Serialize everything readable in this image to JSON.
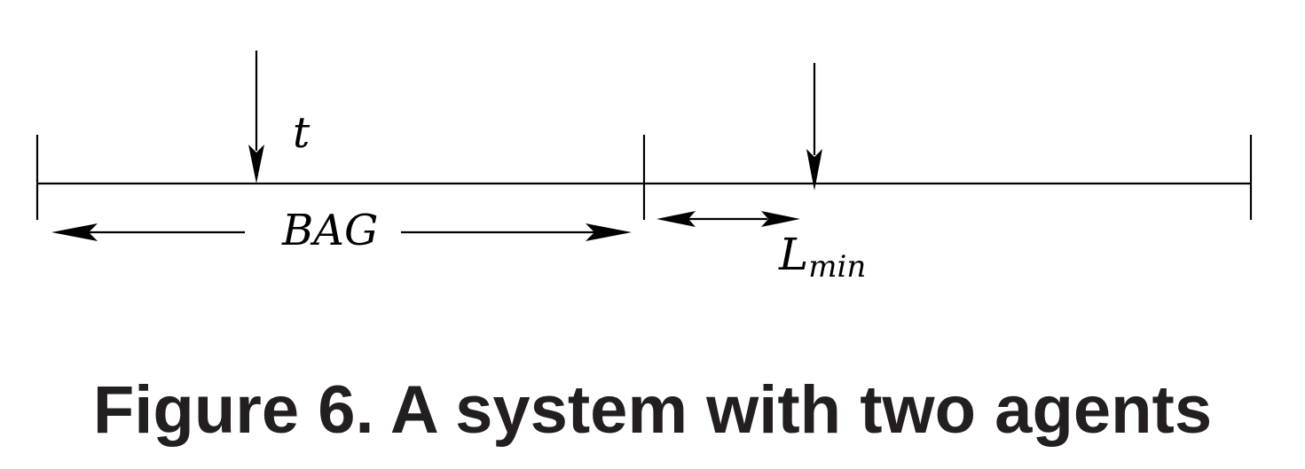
{
  "labels": {
    "t": "t",
    "bag": "BAG",
    "lmin_main": "L",
    "lmin_sub": "min"
  },
  "caption": "Figure 6. A system with two agents",
  "colors": {
    "line": "#000000",
    "caption": "#231f20"
  }
}
